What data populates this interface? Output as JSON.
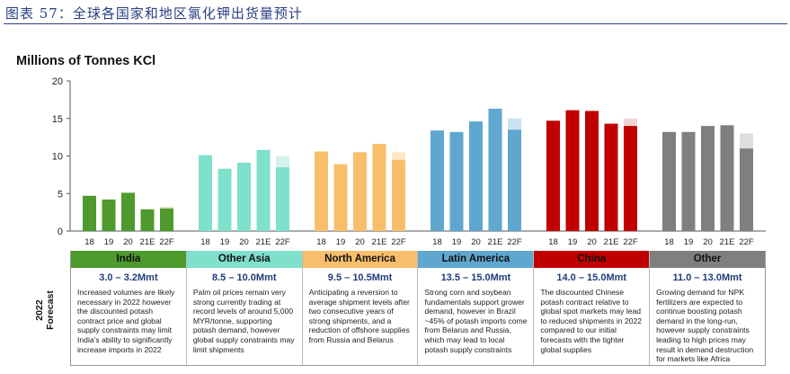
{
  "figure_title": "图表 57：全球各国家和地区氯化钾出货量预计",
  "chart_data": {
    "type": "bar",
    "title": "Millions of Tonnes KCl",
    "ylim": [
      0,
      20
    ],
    "yticks": [
      "0",
      "5",
      "10",
      "15",
      "20"
    ],
    "categories": [
      "18",
      "19",
      "20",
      "21E",
      "22F"
    ],
    "series": [
      {
        "name": "India",
        "color": "#4e9a2d",
        "forecast_color": "#c9dfbb",
        "values": [
          4.7,
          4.2,
          5.1,
          2.9,
          3.0
        ],
        "forecast_high": 3.2
      },
      {
        "name": "Other Asia",
        "color": "#7fe0cc",
        "forecast_color": "#d4f3ec",
        "values": [
          10.1,
          8.3,
          9.1,
          10.8,
          8.5
        ],
        "forecast_high": 10.0
      },
      {
        "name": "North America",
        "color": "#f8be6c",
        "forecast_color": "#fde7c6",
        "values": [
          10.6,
          8.9,
          10.5,
          11.6,
          9.5
        ],
        "forecast_high": 10.5
      },
      {
        "name": "Latin America",
        "color": "#5fa7cf",
        "forecast_color": "#c8e2f0",
        "values": [
          13.4,
          13.2,
          14.6,
          16.3,
          13.5
        ],
        "forecast_high": 15.0
      },
      {
        "name": "China",
        "color": "#c00000",
        "forecast_color": "#f0d4d4",
        "values": [
          14.7,
          16.1,
          16.0,
          14.3,
          14.0
        ],
        "forecast_high": 15.0
      },
      {
        "name": "Other",
        "color": "#7f7f7f",
        "forecast_color": "#dedede",
        "values": [
          13.2,
          13.2,
          14.0,
          14.1,
          11.0
        ],
        "forecast_high": 13.0
      }
    ]
  },
  "forecast_label": "2022\nForecast",
  "panels": [
    {
      "name": "India",
      "head_bg": "#4e9a2d",
      "range": "3.0 – 3.2Mmt",
      "text": "Increased volumes are likely necessary in 2022 however the discounted potash contract price and global supply constraints may limit India’s ability to significantly increase imports in 2022"
    },
    {
      "name": "Other Asia",
      "head_bg": "#7fe0cc",
      "range": "8.5 – 10.0Mmt",
      "text": "Palm oil prices remain very strong currently trading at record levels of around 5,000 MYR/tonne, supporting potash demand, however global supply constraints may limit shipments"
    },
    {
      "name": "North America",
      "head_bg": "#f8be6c",
      "range": "9.5 – 10.5Mmt",
      "text": "Anticipating a reversion to average shipment levels after two consecutive years of strong shipments, and a reduction of offshore supplies from Russia and Belarus"
    },
    {
      "name": "Latin America",
      "head_bg": "#5fa7cf",
      "range": "13.5 – 15.0Mmt",
      "text": "Strong corn and soybean fundamentals support grower demand, however in Brazil ~45% of potash imports come from Belarus and Russia, which may lead to local potash supply constraints"
    },
    {
      "name": "China",
      "head_bg": "#c00000",
      "range": "14.0 – 15.0Mmt",
      "text": "The discounted Chinese potash contract relative to global spot markets may lead to reduced shipments in 2022 compared to our initial forecasts with the tighter global supplies"
    },
    {
      "name": "Other",
      "head_bg": "#7f7f7f",
      "range": "11.0 – 13.0Mmt",
      "text": "Growing demand for NPK fertilizers are expected to continue boosting potash demand in the long-run, however supply constraints leading to high prices may result in demand destruction for markets like Africa"
    }
  ]
}
